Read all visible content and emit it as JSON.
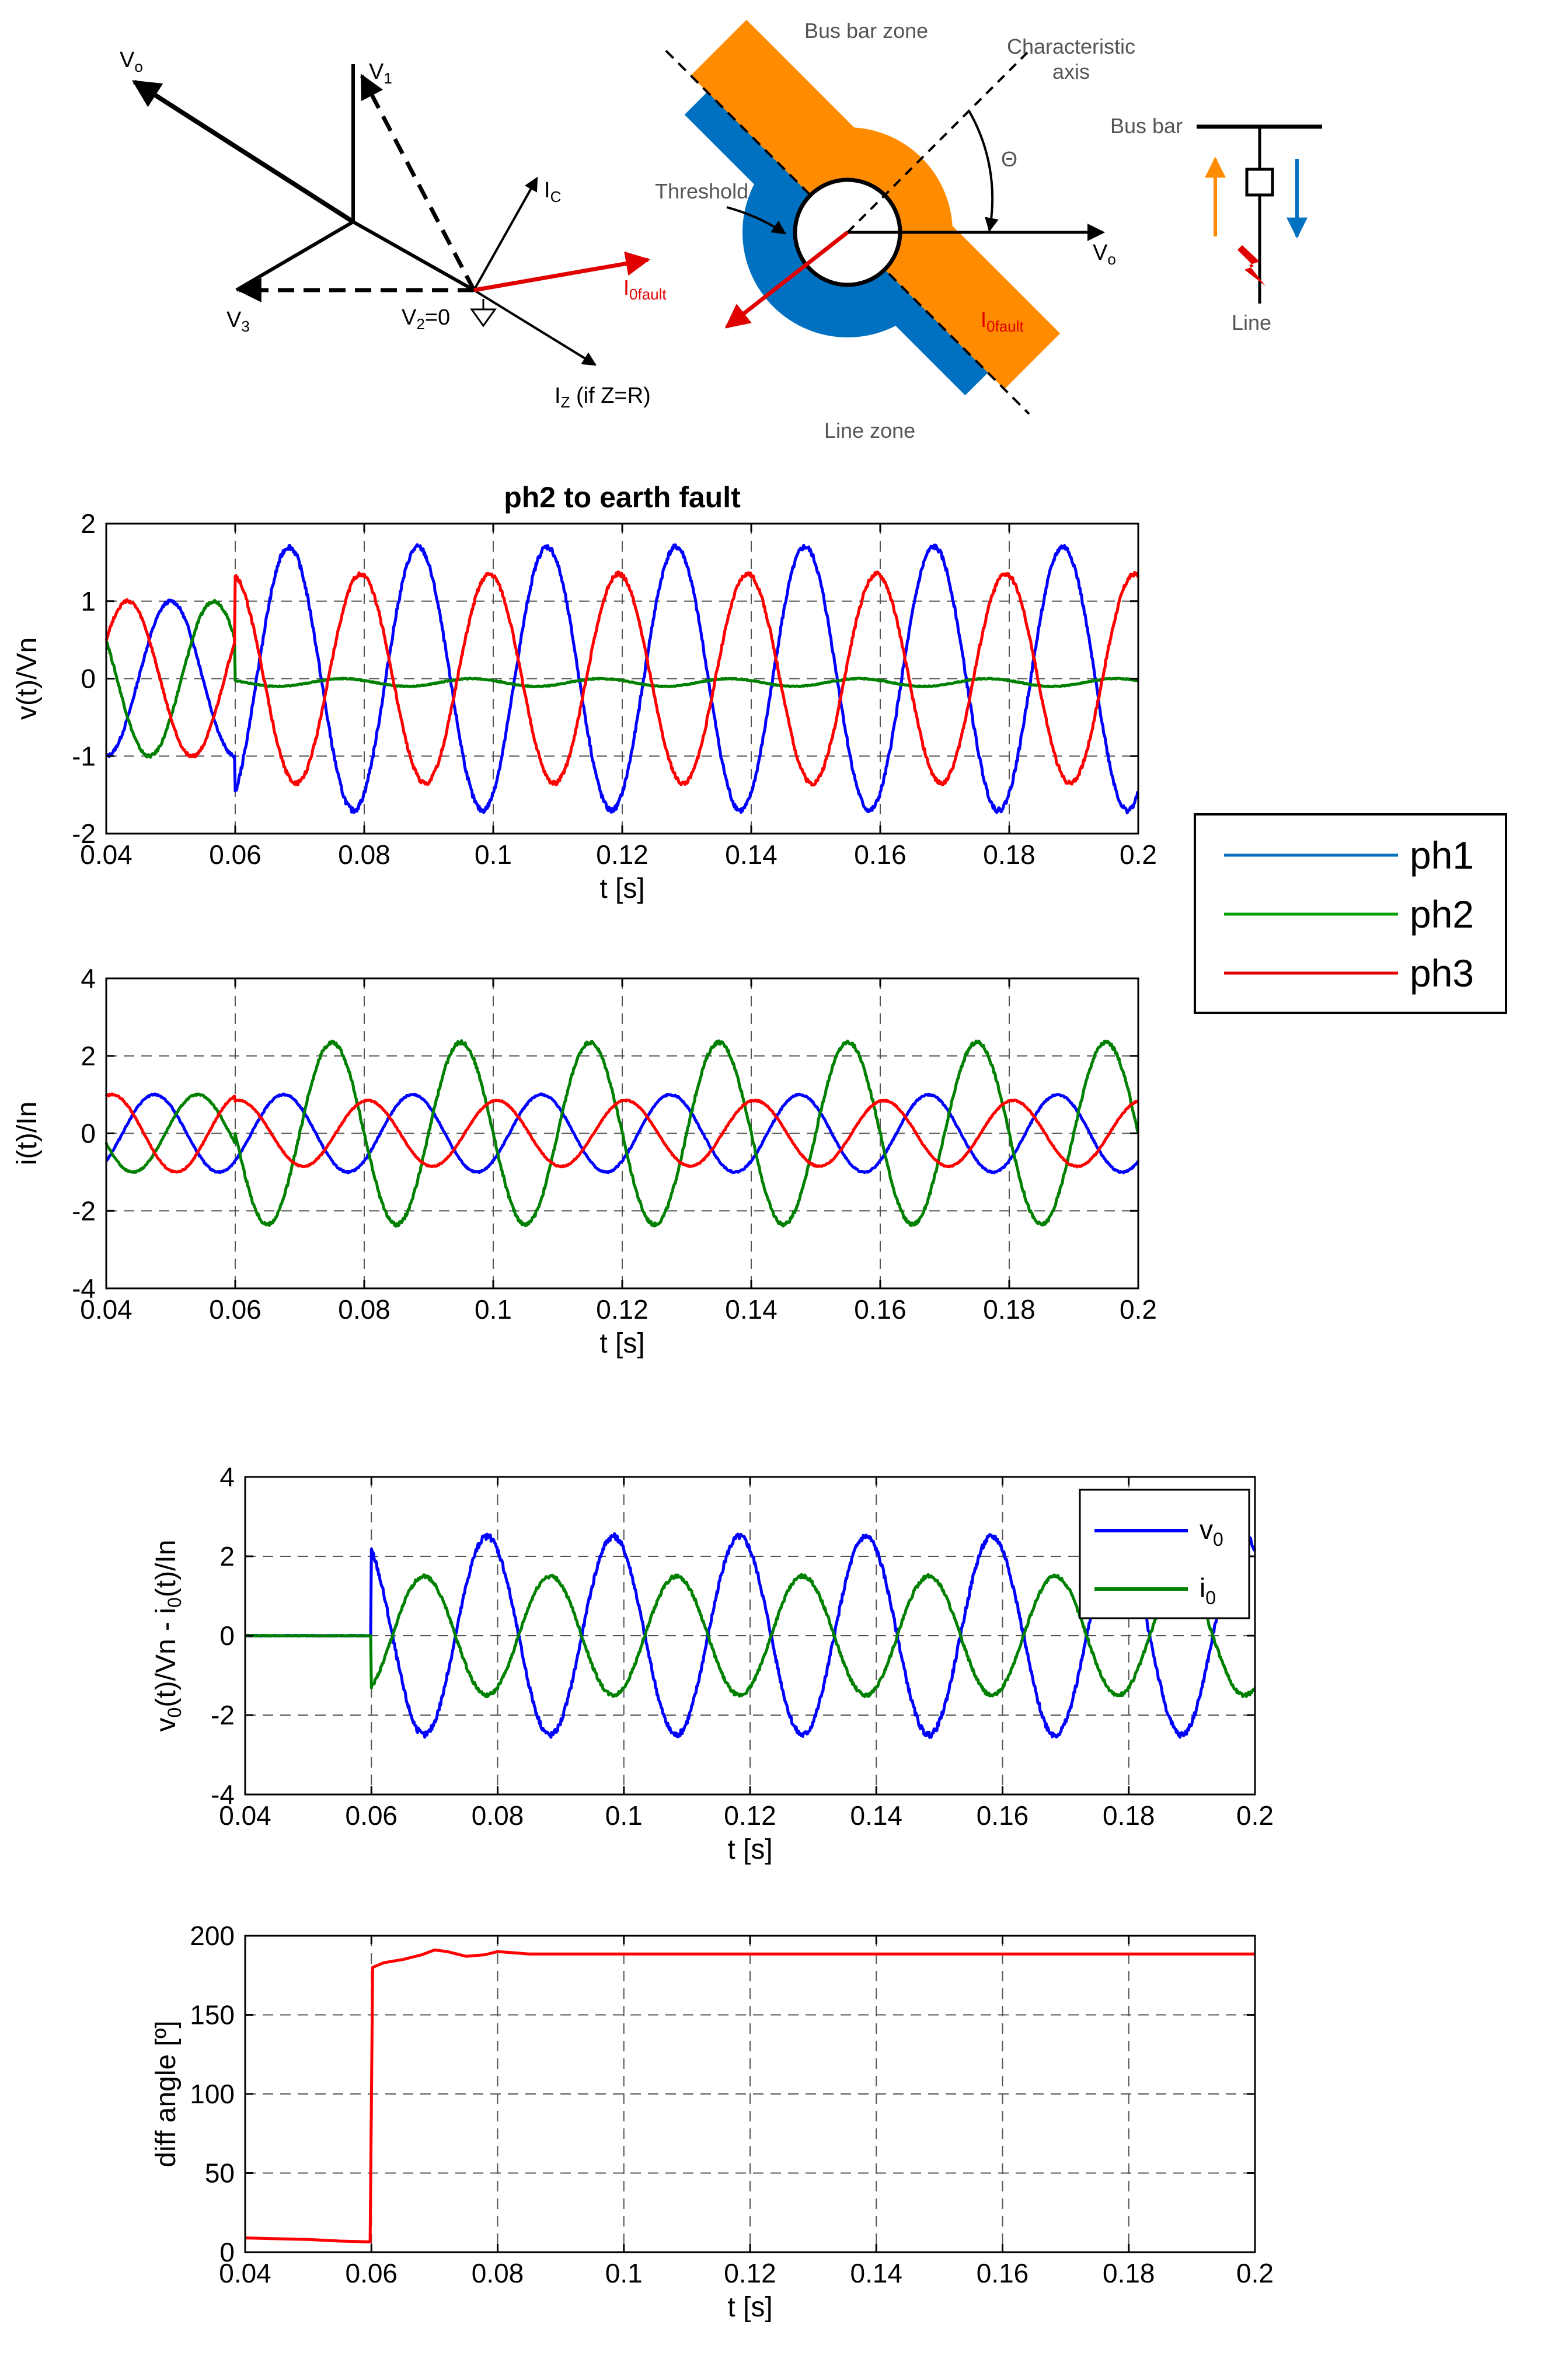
{
  "diagrams": {
    "phasor": {
      "labels": {
        "v0": "V",
        "v0_sub": "o",
        "v1": "V",
        "v1_sub": "1",
        "v3": "V",
        "v3_sub": "3",
        "v2": "V",
        "v2_sub": "2",
        "v2_value": "=0",
        "ic": "I",
        "ic_sub": "C",
        "i0fault": "I",
        "i0fault_sub": "0fault",
        "iz": "I",
        "iz_sub": "Z",
        "iz_note": " (if Z=R)"
      }
    },
    "zones": {
      "bus_bar_zone": "Bus bar zone",
      "line_zone": "Line zone",
      "characteristic_axis_line1": "Characteristic",
      "characteristic_axis_line2": "axis",
      "threshold": "Threshold",
      "theta": "Θ",
      "v0": "V",
      "v0_sub": "o",
      "i0fault": "I",
      "i0fault_sub": "0fault",
      "colors": {
        "bus": "#ff8c00",
        "line": "#0070c0",
        "fault": "#e00000"
      }
    },
    "single_line": {
      "bus_bar": "Bus bar",
      "line": "Line",
      "colors": {
        "up_arrow": "#ff8c00",
        "down_arrow": "#0070c0"
      }
    }
  },
  "legend_phases": {
    "items": [
      {
        "label": "ph1",
        "color": "#0070c0"
      },
      {
        "label": "ph2",
        "color": "#00a000"
      },
      {
        "label": "ph3",
        "color": "#e00000"
      }
    ]
  },
  "chart_data": [
    {
      "type": "line",
      "title": "ph2 to earth fault",
      "xlabel": "t [s]",
      "ylabel": "v(t)/Vn",
      "xlim": [
        0.04,
        0.2
      ],
      "ylim": [
        -2,
        2
      ],
      "xticks": [
        0.04,
        0.06,
        0.08,
        0.1,
        0.12,
        0.14,
        0.16,
        0.18,
        0.2
      ],
      "xtick_labels": [
        "0.04",
        "0.06",
        "0.08",
        "0.1",
        "0.12",
        "0.14",
        "0.16",
        "0.18",
        "0.2"
      ],
      "yticks": [
        -2,
        -1,
        0,
        1,
        2
      ],
      "ytick_labels": [
        "-2",
        "-1",
        "0",
        "1",
        "2"
      ],
      "grid": true,
      "fault_time": 0.06,
      "series": [
        {
          "name": "ph1",
          "color": "#0000ff",
          "pre_amplitude": 1.0,
          "post_amplitude": 1.7,
          "frequency_hz": 50,
          "pre_phase_deg": -90,
          "post_phase_deg": -60,
          "offset": 0,
          "noise": 0.02
        },
        {
          "name": "ph2",
          "color": "#008000",
          "pre_amplitude": 1.0,
          "post_amplitude": 0.05,
          "frequency_hz": 50,
          "pre_phase_deg": 150,
          "post_phase_deg": 150,
          "offset": -0.05,
          "noise": 0.02
        },
        {
          "name": "ph3",
          "color": "#ff0000",
          "pre_amplitude": 1.0,
          "post_amplitude": 1.35,
          "frequency_hz": 50,
          "pre_phase_deg": 30,
          "post_phase_deg": 100,
          "offset": 0,
          "noise": 0.02
        }
      ]
    },
    {
      "type": "line",
      "xlabel": "t [s]",
      "ylabel": "i(t)/In",
      "xlim": [
        0.04,
        0.2
      ],
      "ylim": [
        -4,
        4
      ],
      "xticks": [
        0.04,
        0.06,
        0.08,
        0.1,
        0.12,
        0.14,
        0.16,
        0.18,
        0.2
      ],
      "xtick_labels": [
        "0.04",
        "0.06",
        "0.08",
        "0.1",
        "0.12",
        "0.14",
        "0.16",
        "0.18",
        "0.2"
      ],
      "yticks": [
        -4,
        -2,
        0,
        2,
        4
      ],
      "ytick_labels": [
        "-4",
        "-2",
        "0",
        "2",
        "4"
      ],
      "grid": true,
      "fault_time": 0.06,
      "series": [
        {
          "name": "ph1",
          "color": "#0000ff",
          "pre_amplitude": 1.0,
          "post_amplitude": 1.0,
          "frequency_hz": 50,
          "pre_phase_deg": -45,
          "post_phase_deg": -45,
          "offset": 0,
          "noise": 0.02
        },
        {
          "name": "ph2",
          "color": "#008000",
          "pre_amplitude": 1.0,
          "post_amplitude": 2.35,
          "frequency_hz": 50,
          "pre_phase_deg": -165,
          "post_phase_deg": -180,
          "offset": 0,
          "noise": 0.02
        },
        {
          "name": "ph3",
          "color": "#ff0000",
          "pre_amplitude": 1.0,
          "post_amplitude": 0.85,
          "frequency_hz": 50,
          "pre_phase_deg": 75,
          "post_phase_deg": 80,
          "offset": 0,
          "noise": 0.02
        }
      ]
    },
    {
      "type": "line",
      "xlabel": "t [s]",
      "ylabel": "v0(t)/Vn - i0(t)/In",
      "ylabel_parts": {
        "a": "v",
        "a_sub": "0",
        "b": "(t)/Vn - i",
        "b_sub": "0",
        "c": "(t)/In"
      },
      "xlim": [
        0.04,
        0.2
      ],
      "ylim": [
        -4,
        4
      ],
      "xticks": [
        0.04,
        0.06,
        0.08,
        0.1,
        0.12,
        0.14,
        0.16,
        0.18,
        0.2
      ],
      "xtick_labels": [
        "0.04",
        "0.06",
        "0.08",
        "0.1",
        "0.12",
        "0.14",
        "0.16",
        "0.18",
        "0.2"
      ],
      "yticks": [
        -4,
        -2,
        0,
        2,
        4
      ],
      "ytick_labels": [
        "-4",
        "-2",
        "0",
        "2",
        "4"
      ],
      "grid": true,
      "legend": "top-right",
      "legend_items": [
        {
          "main": "v",
          "sub": "0",
          "color": "#0000ff"
        },
        {
          "main": "i",
          "sub": "0",
          "color": "#008000"
        }
      ],
      "fault_time": 0.06,
      "series": [
        {
          "name": "v0",
          "color": "#0000ff",
          "pre_amplitude": 0,
          "post_amplitude": 2.5,
          "frequency_hz": 50,
          "pre_phase_deg": 0,
          "post_phase_deg": 120,
          "offset": 0,
          "noise": 0.03
        },
        {
          "name": "i0",
          "color": "#008000",
          "pre_amplitude": 0,
          "post_amplitude": 1.5,
          "frequency_hz": 50,
          "pre_phase_deg": 0,
          "post_phase_deg": -60,
          "offset": 0,
          "noise": 0.03
        }
      ]
    },
    {
      "type": "line",
      "xlabel": "t [s]",
      "ylabel": "diff angle [º]",
      "xlim": [
        0.04,
        0.2
      ],
      "ylim": [
        0,
        200
      ],
      "xticks": [
        0.04,
        0.06,
        0.08,
        0.1,
        0.12,
        0.14,
        0.16,
        0.18,
        0.2
      ],
      "xtick_labels": [
        "0.04",
        "0.06",
        "0.08",
        "0.1",
        "0.12",
        "0.14",
        "0.16",
        "0.18",
        "0.2"
      ],
      "yticks": [
        0,
        50,
        100,
        150,
        200
      ],
      "ytick_labels": [
        "0",
        "50",
        "100",
        "150",
        "200"
      ],
      "grid": true,
      "series": [
        {
          "name": "diff angle",
          "color": "#ff0000",
          "points": [
            [
              0.04,
              9
            ],
            [
              0.045,
              8.5
            ],
            [
              0.05,
              8
            ],
            [
              0.055,
              7
            ],
            [
              0.0598,
              6.5
            ],
            [
              0.0602,
              180
            ],
            [
              0.062,
              183
            ],
            [
              0.065,
              185
            ],
            [
              0.068,
              188
            ],
            [
              0.07,
              191
            ],
            [
              0.072,
              190
            ],
            [
              0.075,
              187
            ],
            [
              0.078,
              188
            ],
            [
              0.08,
              190
            ],
            [
              0.085,
              188.5
            ],
            [
              0.1,
              188.5
            ],
            [
              0.15,
              188.5
            ],
            [
              0.2,
              188.5
            ]
          ]
        }
      ]
    }
  ]
}
